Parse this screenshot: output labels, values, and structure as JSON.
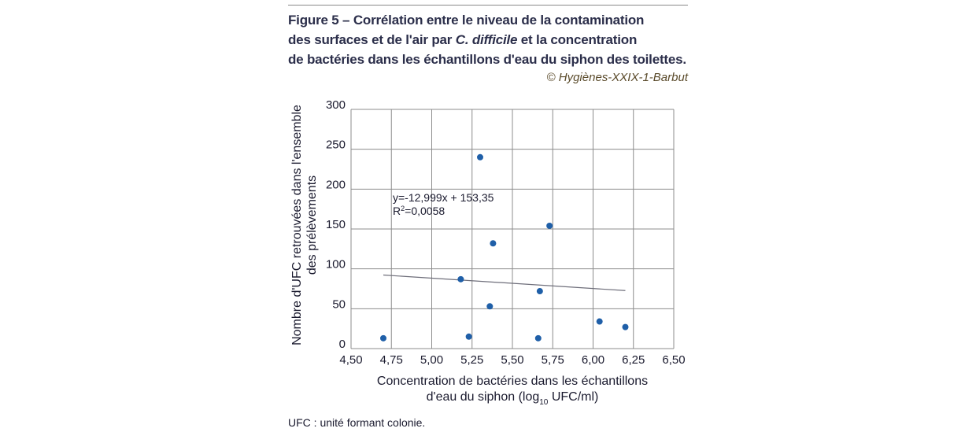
{
  "figure": {
    "title_line1": "Figure 5 – Corrélation entre le niveau de la contamination",
    "title_line2_pre": "des surfaces et de l'air par ",
    "title_line2_italic": "C. difficile",
    "title_line2_post": " et la concentration",
    "title_line3": "de bactéries dans les échantillons d'eau du siphon des toilettes.",
    "credit": "© Hygiènes-XXIX-1-Barbut",
    "footnote": "UFC : unité formant colonie."
  },
  "chart_data": {
    "type": "scatter",
    "xlabel_line1": "Concentration de bactéries dans les échantillons",
    "xlabel_line2_pre": "d'eau du siphon (log",
    "xlabel_line2_sub": "10",
    "xlabel_line2_post": " UFC/ml)",
    "ylabel_line1": "Nombre d'UFC retrouvées dans l'ensemble",
    "ylabel_line2": "des prélèvements",
    "xlim": [
      4.5,
      6.5
    ],
    "ylim": [
      0,
      300
    ],
    "x_ticks": [
      4.5,
      4.75,
      5.0,
      5.25,
      5.5,
      5.75,
      6.0,
      6.25,
      6.5
    ],
    "x_tick_labels": [
      "4,50",
      "4,75",
      "5,00",
      "5,25",
      "5,50",
      "5,75",
      "6,00",
      "6,25",
      "6,50"
    ],
    "y_ticks": [
      0,
      50,
      100,
      150,
      200,
      250,
      300
    ],
    "y_tick_labels": [
      "0",
      "50",
      "100",
      "150",
      "200",
      "250",
      "300"
    ],
    "grid": true,
    "points": [
      {
        "x": 4.7,
        "y": 13
      },
      {
        "x": 5.18,
        "y": 87
      },
      {
        "x": 5.23,
        "y": 15
      },
      {
        "x": 5.3,
        "y": 240
      },
      {
        "x": 5.36,
        "y": 53
      },
      {
        "x": 5.38,
        "y": 132
      },
      {
        "x": 5.66,
        "y": 13
      },
      {
        "x": 5.67,
        "y": 72
      },
      {
        "x": 5.73,
        "y": 154
      },
      {
        "x": 6.04,
        "y": 34
      },
      {
        "x": 6.2,
        "y": 27
      }
    ],
    "trendline": {
      "slope": -12.999,
      "intercept": 153.35,
      "x_from": 4.7,
      "x_to": 6.2
    },
    "equation_label": "y=-12,999x + 153,35",
    "r2_label_pre": "R",
    "r2_label_sup": "2",
    "r2_label_post": "=0,0058",
    "colors": {
      "point": "#1f5fa8",
      "grid": "#8c8c8c",
      "trend": "#6e6e7a"
    }
  }
}
